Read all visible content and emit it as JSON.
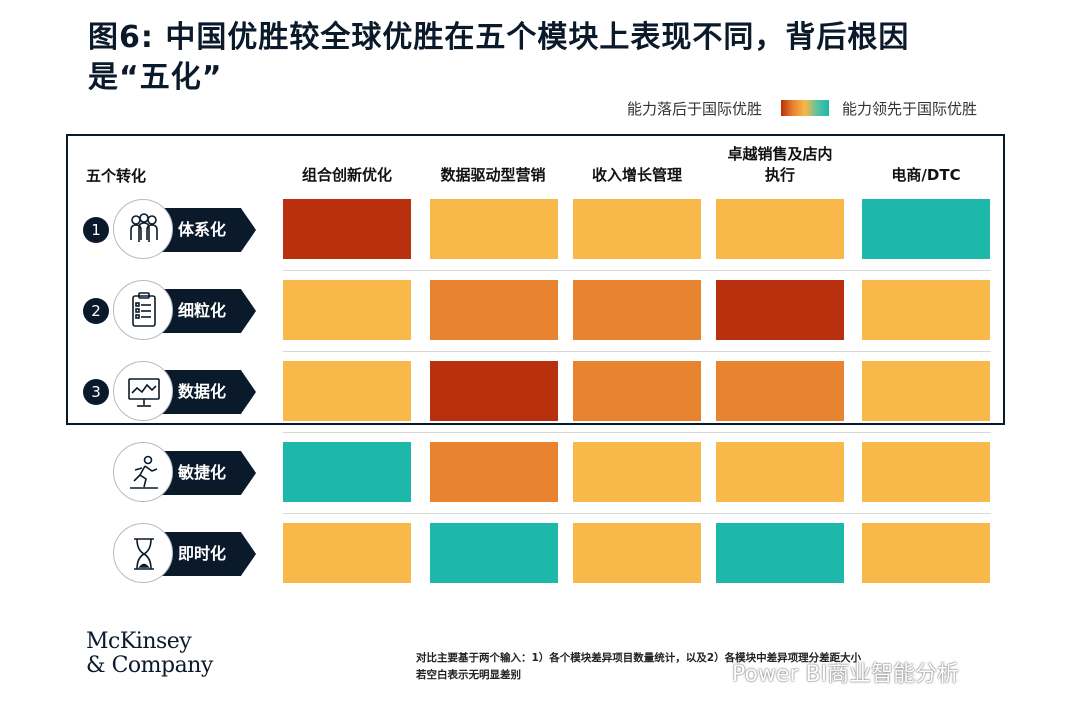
{
  "title": "图6: 中国优胜较全球优胜在五个模块上表现不同，背后根因是“五化”",
  "legend": {
    "low_label": "能力落后于国际优胜",
    "high_label": "能力领先于国际优胜",
    "colors": [
      "#b8300e",
      "#e8842f",
      "#f8b84a",
      "#1db8aa"
    ]
  },
  "chart_data": {
    "type": "heatmap",
    "row_header": "五个转化",
    "columns": [
      "组合创新优化",
      "数据驱动型营销",
      "收入增长管理",
      "卓越销售及店内执行",
      "电商/DTC"
    ],
    "scale": {
      "lagging_far": "#b8300e",
      "lagging": "#e8842f",
      "on_par": "#f8b84a",
      "leading": "#1db8aa"
    },
    "rows": [
      {
        "number": "1",
        "label": "体系化",
        "icon": "people-icon",
        "values": [
          "lagging_far",
          "on_par",
          "on_par",
          "on_par",
          "leading"
        ]
      },
      {
        "number": "2",
        "label": "细粒化",
        "icon": "clipboard-icon",
        "values": [
          "on_par",
          "lagging",
          "lagging",
          "lagging_far",
          "on_par"
        ]
      },
      {
        "number": "3",
        "label": "数据化",
        "icon": "monitor-chart-icon",
        "values": [
          "on_par",
          "lagging_far",
          "lagging",
          "lagging",
          "on_par"
        ]
      },
      {
        "number": "",
        "label": "敏捷化",
        "icon": "runner-icon",
        "values": [
          "leading",
          "lagging",
          "on_par",
          "on_par",
          "on_par"
        ]
      },
      {
        "number": "",
        "label": "即时化",
        "icon": "hourglass-icon",
        "values": [
          "on_par",
          "leading",
          "on_par",
          "leading",
          "on_par"
        ]
      }
    ]
  },
  "brand": {
    "line1": "McKinsey",
    "line2": "& Company"
  },
  "footnote": {
    "line1": "对比主要基于两个输入：1）各个模块差异项目数量统计，以及2）各模块中差异项理分差距大小",
    "line2": "若空白表示无明显差别"
  },
  "watermark": "Power BI商业智能分析"
}
